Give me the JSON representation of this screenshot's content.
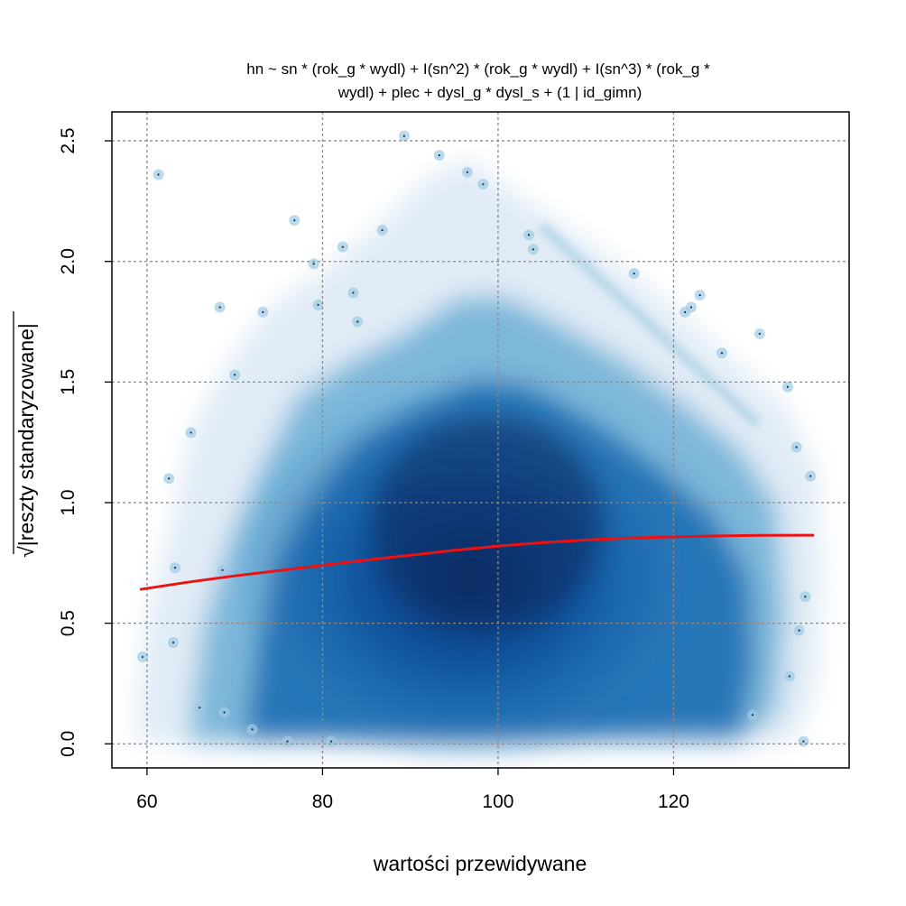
{
  "chart_data": {
    "type": "scatter",
    "title_lines": [
      "hn ~ sn * (rok_g * wydl) + I(sn^2) * (rok_g * wydl) + I(sn^3) * (rok_g *",
      "wydl) + plec + dysl_g * dysl_s + (1 | id_gimn)"
    ],
    "xlabel": "wartości przewidywane",
    "ylabel_root": "√",
    "ylabel_text": "|reszty standaryzowane|",
    "xlim": [
      56,
      140
    ],
    "ylim": [
      -0.1,
      2.62
    ],
    "xticks": [
      "60",
      "80",
      "100",
      "120"
    ],
    "yticks": [
      "0.0",
      "0.5",
      "1.0",
      "1.5",
      "2.0",
      "2.5"
    ],
    "grid": true,
    "grid_color": "#8a8a8a",
    "density_color": "#08519c",
    "smooth_color": "#ee1111",
    "smooth_line": {
      "x": [
        59.2,
        65,
        70,
        75,
        80,
        85,
        90,
        95,
        100,
        105,
        110,
        115,
        120,
        125,
        130,
        136
      ],
      "y": [
        0.64,
        0.672,
        0.696,
        0.718,
        0.74,
        0.762,
        0.782,
        0.802,
        0.82,
        0.834,
        0.845,
        0.853,
        0.858,
        0.862,
        0.864,
        0.865
      ]
    },
    "outliers": [
      {
        "x": 59.5,
        "y": 0.36
      },
      {
        "x": 61.3,
        "y": 2.36
      },
      {
        "x": 62.5,
        "y": 1.1
      },
      {
        "x": 63.2,
        "y": 0.73
      },
      {
        "x": 63.0,
        "y": 0.42
      },
      {
        "x": 65.0,
        "y": 1.29
      },
      {
        "x": 66.0,
        "y": 0.15
      },
      {
        "x": 68.3,
        "y": 1.81
      },
      {
        "x": 68.6,
        "y": 0.72
      },
      {
        "x": 68.8,
        "y": 0.13
      },
      {
        "x": 70.0,
        "y": 1.53
      },
      {
        "x": 72.0,
        "y": 0.06
      },
      {
        "x": 73.2,
        "y": 1.79
      },
      {
        "x": 76.8,
        "y": 2.17
      },
      {
        "x": 79.0,
        "y": 1.99
      },
      {
        "x": 79.5,
        "y": 1.82
      },
      {
        "x": 82.3,
        "y": 2.06
      },
      {
        "x": 83.5,
        "y": 1.87
      },
      {
        "x": 86.8,
        "y": 2.13
      },
      {
        "x": 89.3,
        "y": 2.52
      },
      {
        "x": 93.3,
        "y": 2.44
      },
      {
        "x": 96.5,
        "y": 2.37
      },
      {
        "x": 98.3,
        "y": 2.32
      },
      {
        "x": 103.5,
        "y": 2.11
      },
      {
        "x": 104.0,
        "y": 2.05
      },
      {
        "x": 115.5,
        "y": 1.95
      },
      {
        "x": 121.3,
        "y": 1.79
      },
      {
        "x": 122.0,
        "y": 1.81
      },
      {
        "x": 123.0,
        "y": 1.86
      },
      {
        "x": 125.5,
        "y": 1.62
      },
      {
        "x": 129.8,
        "y": 1.7
      },
      {
        "x": 133.0,
        "y": 1.48
      },
      {
        "x": 134.0,
        "y": 1.23
      },
      {
        "x": 135.6,
        "y": 1.11
      },
      {
        "x": 134.3,
        "y": 0.47
      },
      {
        "x": 135.0,
        "y": 0.61
      },
      {
        "x": 133.2,
        "y": 0.28
      },
      {
        "x": 129.0,
        "y": 0.12
      },
      {
        "x": 134.8,
        "y": 0.01
      },
      {
        "x": 76.0,
        "y": 0.01
      },
      {
        "x": 81.0,
        "y": 0.01
      },
      {
        "x": 84.0,
        "y": 1.75
      }
    ]
  }
}
